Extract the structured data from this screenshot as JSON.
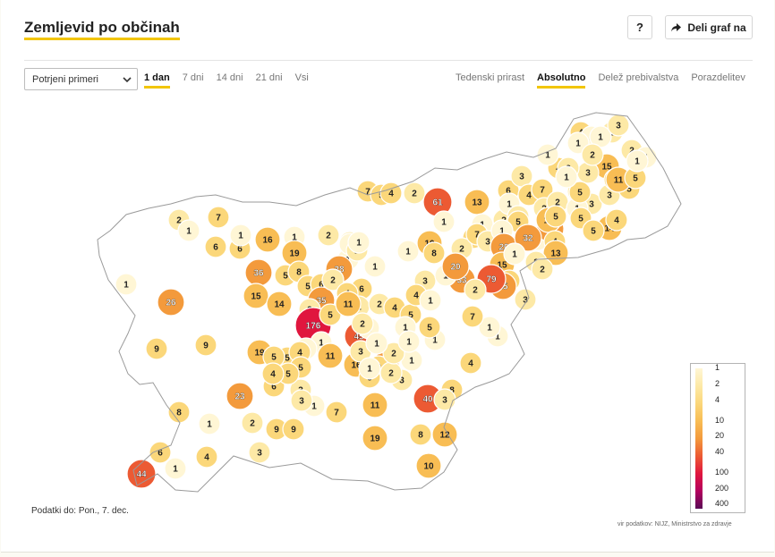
{
  "header": {
    "title": "Zemljevid po občinah",
    "help_label": "?",
    "share_label": "Deli graf na"
  },
  "controls": {
    "select_value": "Potrjeni primeri",
    "time_tabs": [
      {
        "label": "1 dan",
        "active": true
      },
      {
        "label": "7 dni",
        "active": false
      },
      {
        "label": "14 dni",
        "active": false
      },
      {
        "label": "21 dni",
        "active": false
      },
      {
        "label": "Vsi",
        "active": false
      }
    ],
    "mode_tabs": [
      {
        "label": "Tedenski prirast",
        "active": false
      },
      {
        "label": "Absolutno",
        "active": true
      },
      {
        "label": "Delež prebivalstva",
        "active": false
      },
      {
        "label": "Porazdelitev",
        "active": false
      }
    ]
  },
  "footer": {
    "data_date": "Podatki do: Pon., 7. dec.",
    "source": "vir podatkov: NIJZ, Ministrstvo za zdravje"
  },
  "legend": {
    "ticks": [
      "1",
      "2",
      "4",
      "10",
      "20",
      "40",
      "100",
      "200",
      "400"
    ],
    "colors": [
      "#fff6d5",
      "#fde9a6",
      "#fbd77a",
      "#f8bd54",
      "#f39a3c",
      "#ec5a33",
      "#e0163e",
      "#b3005e",
      "#5a0a56"
    ]
  },
  "map_data": {
    "municipality_values": [
      "2",
      "7",
      "1",
      "6",
      "6",
      "1",
      "16",
      "1",
      "19",
      "2",
      "2",
      "1",
      "1",
      "2",
      "1",
      "1",
      "26",
      "36",
      "15",
      "5",
      "8",
      "5",
      "28",
      "6",
      "6",
      "14",
      "35",
      "3",
      "2",
      "2",
      "4",
      "176",
      "5",
      "11",
      "45",
      "1",
      "1",
      "1",
      "9",
      "9",
      "19",
      "5",
      "4",
      "5",
      "11",
      "5",
      "16",
      "21",
      "3",
      "9",
      "6",
      "23",
      "3",
      "1",
      "5",
      "3",
      "4",
      "5",
      "40",
      "8",
      "8",
      "1",
      "2",
      "9",
      "7",
      "11",
      "8",
      "12",
      "9",
      "3",
      "19",
      "10",
      "44",
      "1",
      "4",
      "6",
      "7",
      "5",
      "4",
      "2",
      "61",
      "13",
      "6",
      "3",
      "4",
      "7",
      "2",
      "2",
      "3",
      "3",
      "3",
      "4",
      "1",
      "3",
      "1",
      "1",
      "3",
      "2",
      "1",
      "15",
      "8",
      "5",
      "11",
      "3",
      "5",
      "4",
      "2",
      "51",
      "6",
      "1",
      "2",
      "1",
      "2",
      "1",
      "5",
      "24",
      "1",
      "10",
      "2",
      "7",
      "3",
      "1",
      "20",
      "32",
      "17",
      "4",
      "13",
      "1",
      "5",
      "14",
      "15",
      "8",
      "2",
      "25",
      "79",
      "33",
      "3",
      "1",
      "8",
      "20",
      "2",
      "2",
      "4",
      "5",
      "1",
      "1",
      "4",
      "1",
      "3",
      "1",
      "2",
      "3",
      "1",
      "1",
      "5",
      "1",
      "2",
      "1",
      "2",
      "4",
      "3",
      "7",
      "2",
      "1",
      "1",
      "2",
      "1",
      "5",
      "5",
      "4",
      "5",
      "1",
      "1",
      "1",
      "1"
    ]
  }
}
